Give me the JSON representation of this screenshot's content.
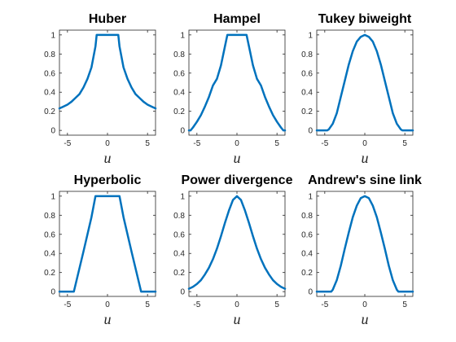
{
  "chart_data": [
    {
      "type": "line",
      "title": "Huber",
      "xlabel": "u",
      "ylabel": "",
      "xlim": [
        -6,
        6
      ],
      "ylim": [
        -0.05,
        1.05
      ],
      "xticks": [
        -5,
        0,
        5
      ],
      "yticks": [
        0,
        0.2,
        0.4,
        0.6,
        0.8,
        1
      ],
      "grid": false,
      "series": [
        {
          "color": "#0072BD",
          "x": [
            -6,
            -5.5,
            -5,
            -4.5,
            -4,
            -3.5,
            -3,
            -2.5,
            -2,
            -1.5,
            -1.35,
            -1.2,
            0,
            1.2,
            1.35,
            1.5,
            2,
            2.5,
            3,
            3.5,
            4,
            4.5,
            5,
            5.5,
            6
          ],
          "y": [
            0.23,
            0.25,
            0.27,
            0.3,
            0.34,
            0.38,
            0.45,
            0.54,
            0.66,
            0.88,
            1.0,
            1.0,
            1.0,
            1.0,
            1.0,
            0.88,
            0.66,
            0.54,
            0.45,
            0.38,
            0.34,
            0.3,
            0.27,
            0.25,
            0.23
          ]
        }
      ]
    },
    {
      "type": "line",
      "title": "Hampel",
      "xlabel": "u",
      "ylabel": "",
      "xlim": [
        -6,
        6
      ],
      "ylim": [
        -0.05,
        1.05
      ],
      "xticks": [
        -5,
        0,
        5
      ],
      "yticks": [
        0,
        0.2,
        0.4,
        0.6,
        0.8,
        1
      ],
      "grid": false,
      "series": [
        {
          "color": "#0072BD",
          "x": [
            -6,
            -5.8,
            -5.5,
            -5,
            -4.5,
            -4,
            -3.5,
            -3,
            -2.5,
            -2,
            -1.5,
            -1.2,
            0,
            1.2,
            1.5,
            2,
            2.5,
            3,
            3.5,
            4,
            4.5,
            5,
            5.5,
            5.8,
            6
          ],
          "y": [
            0.0,
            0.0,
            0.03,
            0.09,
            0.16,
            0.25,
            0.35,
            0.47,
            0.54,
            0.68,
            0.88,
            1.0,
            1.0,
            1.0,
            0.88,
            0.68,
            0.54,
            0.47,
            0.35,
            0.25,
            0.16,
            0.09,
            0.03,
            0.0,
            0.0
          ]
        }
      ]
    },
    {
      "type": "line",
      "title": "Tukey biweight",
      "xlabel": "u",
      "ylabel": "",
      "xlim": [
        -6,
        6
      ],
      "ylim": [
        -0.05,
        1.05
      ],
      "xticks": [
        -5,
        0,
        5
      ],
      "yticks": [
        0,
        0.2,
        0.4,
        0.6,
        0.8,
        1
      ],
      "grid": false,
      "series": [
        {
          "color": "#0072BD",
          "x": [
            -6,
            -5,
            -4.7,
            -4.5,
            -4,
            -3.5,
            -3,
            -2.5,
            -2,
            -1.5,
            -1,
            -0.5,
            0,
            0.5,
            1,
            1.5,
            2,
            2.5,
            3,
            3.5,
            4,
            4.5,
            4.7,
            5,
            6
          ],
          "y": [
            0.0,
            0.0,
            0.0,
            0.01,
            0.07,
            0.18,
            0.35,
            0.52,
            0.69,
            0.83,
            0.93,
            0.98,
            1.0,
            0.98,
            0.93,
            0.83,
            0.69,
            0.52,
            0.35,
            0.18,
            0.07,
            0.01,
            0.0,
            0.0,
            0.0
          ]
        }
      ]
    },
    {
      "type": "line",
      "title": "Hyperbolic",
      "xlabel": "u",
      "ylabel": "",
      "xlim": [
        -6,
        6
      ],
      "ylim": [
        -0.05,
        1.05
      ],
      "xticks": [
        -5,
        0,
        5
      ],
      "yticks": [
        0,
        0.2,
        0.4,
        0.6,
        0.8,
        1
      ],
      "grid": false,
      "series": [
        {
          "color": "#0072BD",
          "x": [
            -6,
            -4.5,
            -4.2,
            -3,
            -2,
            -1.5,
            0,
            1.5,
            2,
            3,
            4.2,
            4.5,
            6
          ],
          "y": [
            0.0,
            0.0,
            0.0,
            0.42,
            0.78,
            1.0,
            1.0,
            1.0,
            0.78,
            0.42,
            0.0,
            0.0,
            0.0
          ]
        }
      ]
    },
    {
      "type": "line",
      "title": "Power divergence",
      "xlabel": "u",
      "ylabel": "",
      "xlim": [
        -6,
        6
      ],
      "ylim": [
        -0.05,
        1.05
      ],
      "xticks": [
        -5,
        0,
        5
      ],
      "yticks": [
        0,
        0.2,
        0.4,
        0.6,
        0.8,
        1
      ],
      "grid": false,
      "series": [
        {
          "color": "#0072BD",
          "x": [
            -6,
            -5.5,
            -5,
            -4.5,
            -4,
            -3.5,
            -3,
            -2.5,
            -2,
            -1.5,
            -1,
            -0.5,
            0,
            0.5,
            1,
            1.5,
            2,
            2.5,
            3,
            3.5,
            4,
            4.5,
            5,
            5.5,
            6
          ],
          "y": [
            0.03,
            0.05,
            0.08,
            0.12,
            0.18,
            0.25,
            0.34,
            0.45,
            0.58,
            0.72,
            0.85,
            0.96,
            1.0,
            0.96,
            0.85,
            0.72,
            0.58,
            0.45,
            0.34,
            0.25,
            0.18,
            0.12,
            0.08,
            0.05,
            0.03
          ]
        }
      ]
    },
    {
      "type": "line",
      "title": "Andrew's sine link",
      "xlabel": "u",
      "ylabel": "",
      "xlim": [
        -6,
        6
      ],
      "ylim": [
        -0.05,
        1.05
      ],
      "xticks": [
        -5,
        0,
        5
      ],
      "yticks": [
        0,
        0.2,
        0.4,
        0.6,
        0.8,
        1
      ],
      "grid": false,
      "series": [
        {
          "color": "#0072BD",
          "x": [
            -6,
            -4.5,
            -4.2,
            -4,
            -3.5,
            -3,
            -2.5,
            -2,
            -1.5,
            -1,
            -0.5,
            0,
            0.5,
            1,
            1.5,
            2,
            2.5,
            3,
            3.5,
            4,
            4.2,
            4.5,
            6
          ],
          "y": [
            0.0,
            0.0,
            0.0,
            0.02,
            0.12,
            0.27,
            0.45,
            0.62,
            0.78,
            0.9,
            0.98,
            1.0,
            0.98,
            0.9,
            0.78,
            0.62,
            0.45,
            0.27,
            0.12,
            0.02,
            0.0,
            0.0,
            0.0
          ]
        }
      ]
    }
  ]
}
